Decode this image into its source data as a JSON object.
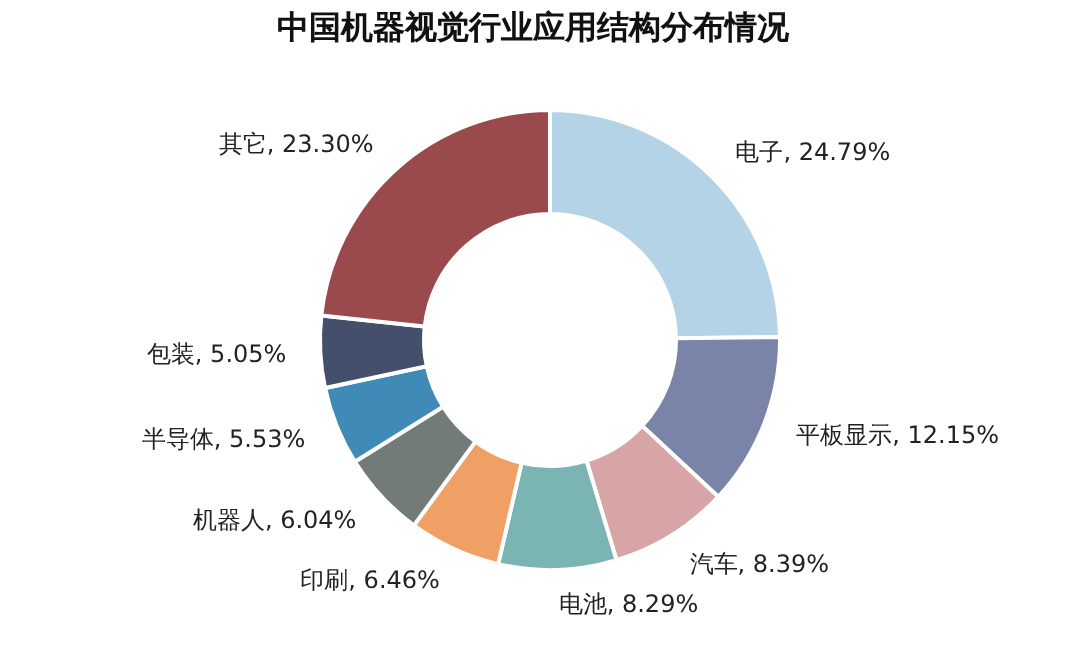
{
  "chart_data": {
    "type": "donut",
    "title": "中国机器视觉行业应用结构分布情况",
    "categories": [
      "电子",
      "平板显示",
      "汽车",
      "电池",
      "印刷",
      "机器人",
      "半导体",
      "包装",
      "其它"
    ],
    "values": [
      24.79,
      12.15,
      8.39,
      8.29,
      6.46,
      6.04,
      5.53,
      5.05,
      23.3
    ],
    "value_labels": [
      "24.79%",
      "12.15%",
      "8.39%",
      "8.29%",
      "6.46%",
      "6.04%",
      "5.53%",
      "5.05%",
      "23.30%"
    ],
    "colors": [
      "#b5d3e6",
      "#7a84a8",
      "#d8a5a7",
      "#7ab4b3",
      "#f0a064",
      "#737b79",
      "#3f8ab6",
      "#44506b",
      "#9a4a4c"
    ],
    "legend": false
  }
}
